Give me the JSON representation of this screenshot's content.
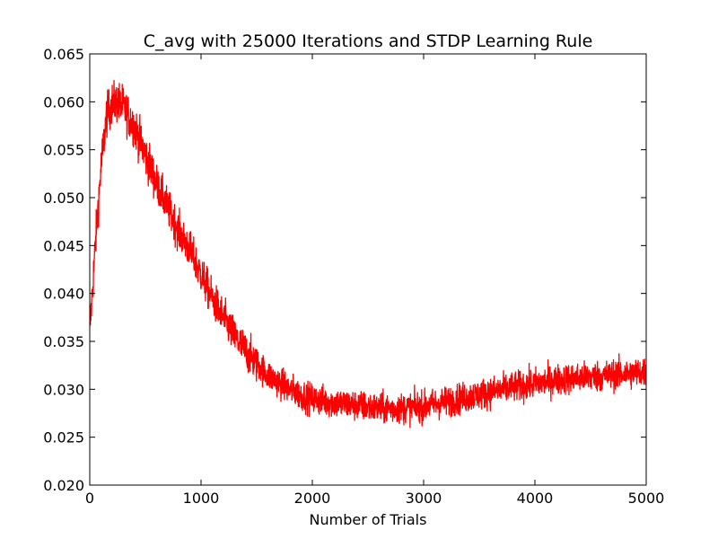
{
  "chart_data": {
    "type": "line",
    "title": "C_avg with 25000 Iterations and STDP Learning Rule",
    "xlabel": "Number of Trials",
    "ylabel": "",
    "xlim": [
      0,
      5000
    ],
    "ylim": [
      0.02,
      0.065
    ],
    "x_ticks": [
      "0",
      "1000",
      "2000",
      "3000",
      "4000",
      "5000"
    ],
    "y_ticks": [
      "0.020",
      "0.025",
      "0.030",
      "0.035",
      "0.040",
      "0.045",
      "0.050",
      "0.055",
      "0.060",
      "0.065"
    ],
    "grid": false,
    "legend": "none",
    "series": [
      {
        "color": "#ff0000",
        "noisy": true,
        "x": [
          0,
          50,
          100,
          150,
          200,
          250,
          300,
          400,
          500,
          600,
          700,
          800,
          900,
          1000,
          1100,
          1200,
          1300,
          1400,
          1500,
          1600,
          1700,
          1800,
          1900,
          2000,
          2200,
          2400,
          2600,
          2800,
          3000,
          3200,
          3400,
          3600,
          3800,
          4000,
          4200,
          4400,
          4600,
          4800,
          5000
        ],
        "values": [
          0.036,
          0.045,
          0.053,
          0.0585,
          0.0598,
          0.06,
          0.0595,
          0.0575,
          0.0545,
          0.0515,
          0.049,
          0.0465,
          0.0445,
          0.042,
          0.0395,
          0.0375,
          0.0355,
          0.034,
          0.0327,
          0.0315,
          0.0307,
          0.03,
          0.0294,
          0.029,
          0.0286,
          0.0283,
          0.028,
          0.028,
          0.0282,
          0.0287,
          0.0292,
          0.0297,
          0.0302,
          0.0306,
          0.031,
          0.0312,
          0.0314,
          0.0316,
          0.0318
        ]
      }
    ]
  }
}
